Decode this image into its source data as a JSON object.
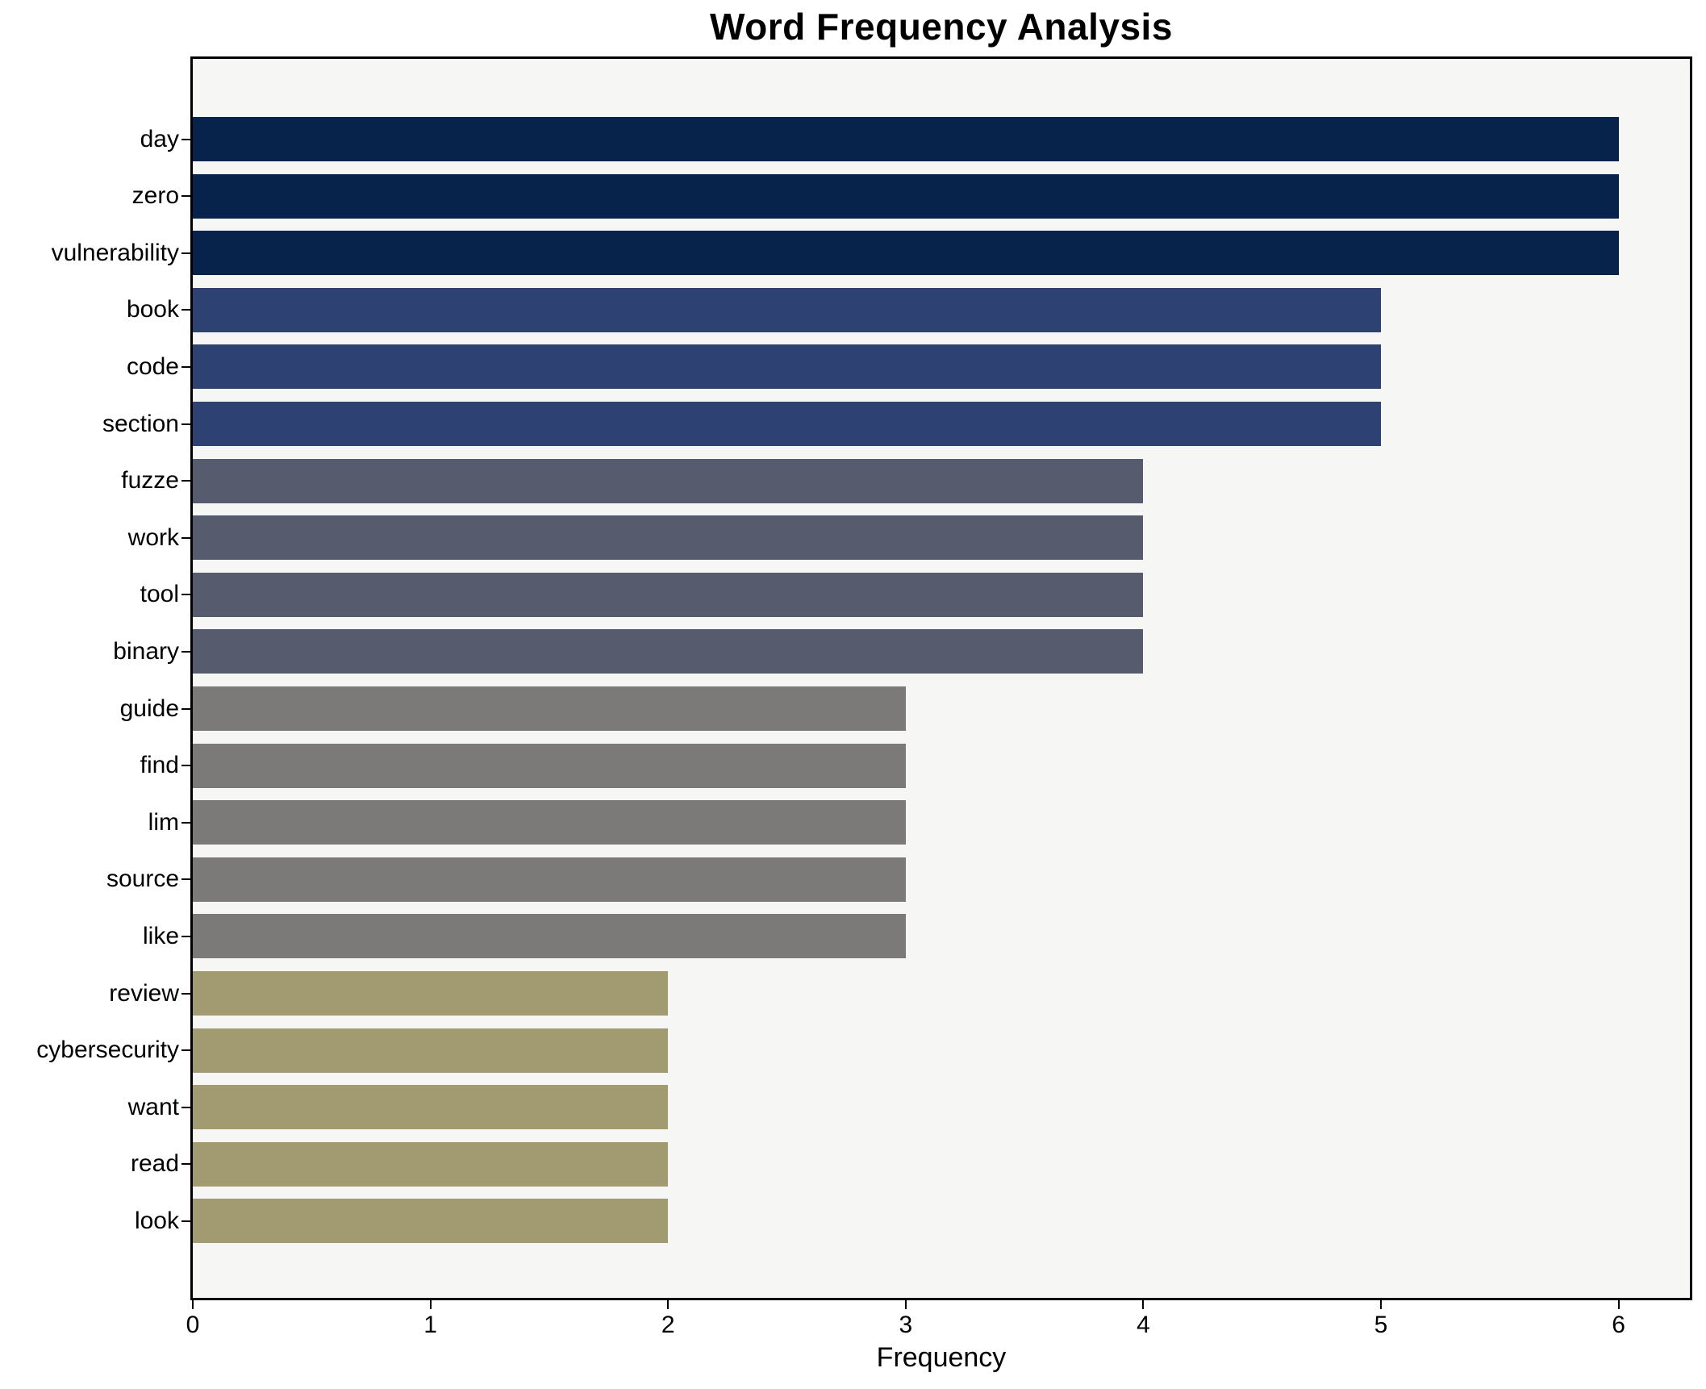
{
  "chart_data": {
    "type": "bar",
    "orientation": "horizontal",
    "title": "Word Frequency Analysis",
    "xlabel": "Frequency",
    "ylabel": "",
    "categories": [
      "day",
      "zero",
      "vulnerability",
      "book",
      "code",
      "section",
      "fuzze",
      "work",
      "tool",
      "binary",
      "guide",
      "find",
      "lim",
      "source",
      "like",
      "review",
      "cybersecurity",
      "want",
      "read",
      "look"
    ],
    "values": [
      6,
      6,
      6,
      5,
      5,
      5,
      4,
      4,
      4,
      4,
      3,
      3,
      3,
      3,
      3,
      2,
      2,
      2,
      2,
      2
    ],
    "xlim": [
      0,
      6.3
    ],
    "xticks": [
      0,
      1,
      2,
      3,
      4,
      5,
      6
    ],
    "grid": false,
    "legend": false,
    "bar_order": "descending-top-to-bottom",
    "colors": {
      "plot_background": "#f6f6f4",
      "figure_background": "#ffffff",
      "spine": "#000000",
      "text": "#000000",
      "by_value": {
        "6": "#07234b",
        "5": "#2e4173",
        "4": "#565c6d",
        "3": "#7b7a78",
        "2": "#a29a70"
      }
    }
  }
}
